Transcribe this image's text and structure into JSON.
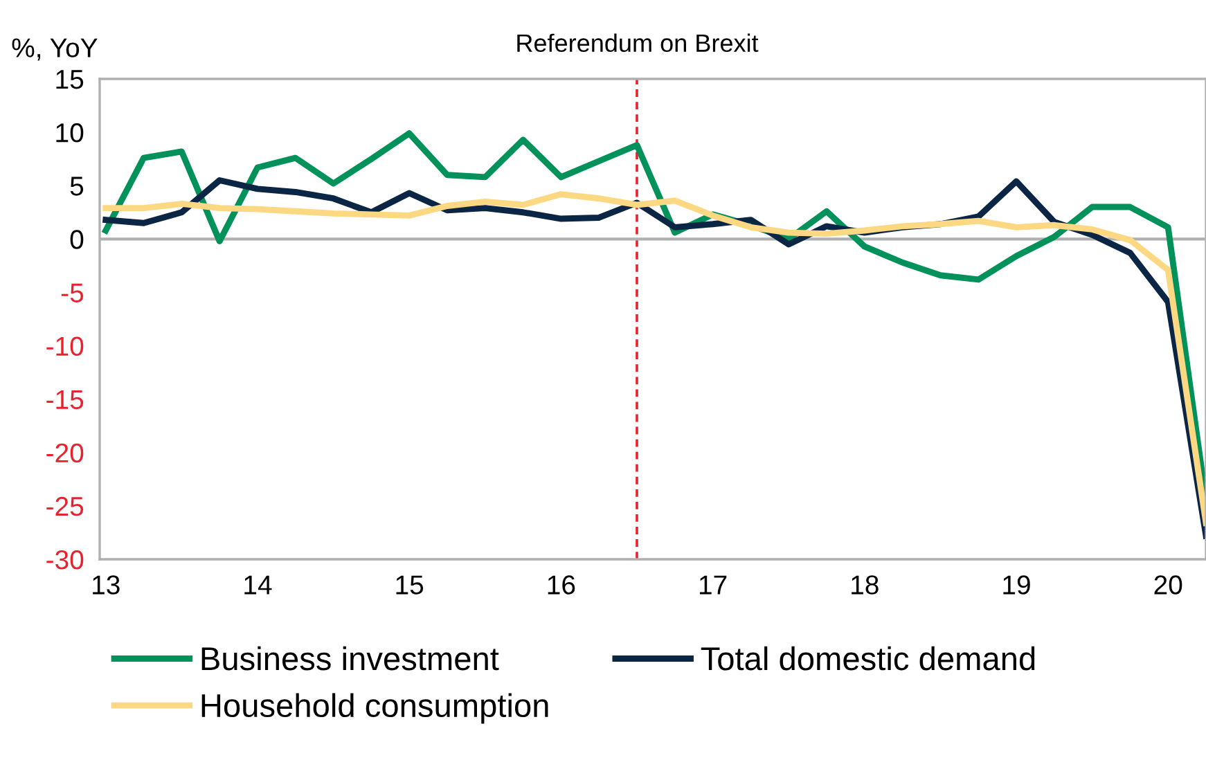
{
  "chart_data": {
    "type": "line",
    "ylabel": "%, YoY",
    "x": [
      13.0,
      13.25,
      13.5,
      13.75,
      14.0,
      14.25,
      14.5,
      14.75,
      15.0,
      15.25,
      15.5,
      15.75,
      16.0,
      16.25,
      16.5,
      16.75,
      17.0,
      17.25,
      17.5,
      17.75,
      18.0,
      18.25,
      18.5,
      18.75,
      19.0,
      19.25,
      19.5,
      19.75,
      20.0,
      20.25
    ],
    "series": [
      {
        "name": "Business investment",
        "color": "#00925a",
        "values": [
          0.8,
          7.6,
          8.2,
          -0.2,
          6.7,
          7.6,
          5.2,
          7.5,
          9.9,
          6.0,
          5.8,
          9.3,
          5.8,
          7.3,
          8.8,
          0.6,
          2.3,
          1.3,
          0.0,
          2.6,
          -0.7,
          -2.2,
          -3.4,
          -3.8,
          -1.6,
          0.2,
          3.0,
          3.0,
          1.1,
          -24.5
        ]
      },
      {
        "name": "Total domestic demand",
        "color": "#0b2545",
        "values": [
          1.8,
          1.5,
          2.5,
          5.5,
          4.7,
          4.4,
          3.8,
          2.5,
          4.3,
          2.7,
          2.9,
          2.5,
          1.9,
          2.0,
          3.4,
          1.1,
          1.4,
          1.8,
          -0.5,
          1.2,
          0.6,
          1.1,
          1.4,
          2.1,
          5.4,
          1.6,
          0.4,
          -1.3,
          -5.9,
          -27.8
        ]
      },
      {
        "name": "Household consumption",
        "color": "#fdd882",
        "values": [
          2.9,
          2.9,
          3.3,
          2.9,
          2.8,
          2.6,
          2.4,
          2.3,
          2.2,
          3.1,
          3.5,
          3.2,
          4.2,
          3.8,
          3.2,
          3.6,
          2.2,
          1.1,
          0.6,
          0.5,
          0.8,
          1.2,
          1.4,
          1.7,
          1.1,
          1.3,
          0.9,
          -0.1,
          -2.9,
          -26.6
        ]
      }
    ],
    "xlim": [
      12.96,
      20.25
    ],
    "xticks": [
      13,
      14,
      15,
      16,
      17,
      18,
      19,
      20
    ],
    "ylim": [
      -30,
      15
    ],
    "yticks": [
      -30,
      -25,
      -20,
      -15,
      -10,
      -5,
      0,
      5,
      10,
      15
    ],
    "ref_lines": [
      {
        "axis": "x",
        "value": 16.5,
        "label": "Referendum on Brexit",
        "color": "#e8222d",
        "line_style": "dashed"
      },
      {
        "axis": "y",
        "value": 0,
        "label": null,
        "color": "#b0b0b0",
        "line_style": "solid"
      }
    ],
    "grid": false,
    "legend": "bottom",
    "marker": "none",
    "line_style": "solid"
  }
}
